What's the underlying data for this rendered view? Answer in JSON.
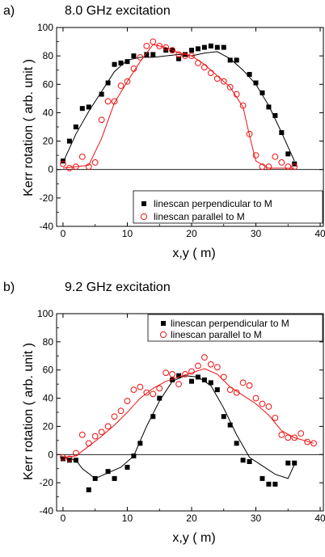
{
  "chart_data": [
    {
      "type": "scatter",
      "panel_label": "a)",
      "title": "8.0 GHz excitation",
      "xlabel": "x,y (  m)",
      "ylabel": "Kerr rotation ( arb. unit )",
      "xlim": [
        -1,
        40.5
      ],
      "ylim": [
        -40,
        100
      ],
      "xticks": [
        0,
        10,
        20,
        30,
        40
      ],
      "yticks": [
        -40,
        -20,
        0,
        20,
        40,
        60,
        80,
        100
      ],
      "zero_line": true,
      "legend_position": "bottom-right",
      "series": [
        {
          "name": "linescan perpendicular to M",
          "marker": "square-filled",
          "color": "#000000",
          "points": [
            [
              0,
              6
            ],
            [
              1,
              20
            ],
            [
              2,
              30
            ],
            [
              3,
              43
            ],
            [
              4,
              44
            ],
            [
              6,
              53
            ],
            [
              7,
              61
            ],
            [
              8,
              74
            ],
            [
              9,
              75
            ],
            [
              10,
              76
            ],
            [
              11,
              80
            ],
            [
              13,
              81
            ],
            [
              14,
              81
            ],
            [
              16,
              84
            ],
            [
              17,
              84
            ],
            [
              18,
              78
            ],
            [
              19,
              81
            ],
            [
              20,
              84
            ],
            [
              21,
              85
            ],
            [
              22,
              86
            ],
            [
              23,
              87
            ],
            [
              24,
              86
            ],
            [
              25,
              86
            ],
            [
              26,
              77
            ],
            [
              27,
              77
            ],
            [
              29,
              67
            ],
            [
              30,
              61
            ],
            [
              31,
              54
            ],
            [
              32,
              44
            ],
            [
              33,
              38
            ],
            [
              34,
              26
            ],
            [
              35,
              11
            ],
            [
              36,
              4
            ]
          ],
          "fit": [
            [
              0,
              5
            ],
            [
              2,
              25
            ],
            [
              4,
              41
            ],
            [
              6,
              55
            ],
            [
              8,
              69
            ],
            [
              10,
              77
            ],
            [
              12,
              79
            ],
            [
              14,
              79
            ],
            [
              16,
              80
            ],
            [
              18,
              81
            ],
            [
              20,
              80
            ],
            [
              22,
              82
            ],
            [
              24,
              83
            ],
            [
              26,
              78
            ],
            [
              28,
              70
            ],
            [
              30,
              60
            ],
            [
              32,
              45
            ],
            [
              34,
              26
            ],
            [
              36,
              6
            ]
          ]
        },
        {
          "name": "linescan parallel to M",
          "marker": "circle-open",
          "color": "#ee1111",
          "points": [
            [
              0,
              4
            ],
            [
              1,
              1
            ],
            [
              2,
              2
            ],
            [
              3,
              9
            ],
            [
              4,
              2
            ],
            [
              5,
              5
            ],
            [
              6,
              35
            ],
            [
              7,
              48
            ],
            [
              8,
              48
            ],
            [
              9,
              59
            ],
            [
              10,
              62
            ],
            [
              11,
              71
            ],
            [
              12,
              79
            ],
            [
              13,
              87
            ],
            [
              14,
              90
            ],
            [
              15,
              87
            ],
            [
              16,
              86
            ],
            [
              17,
              84
            ],
            [
              18,
              81
            ],
            [
              19,
              80
            ],
            [
              20,
              80
            ],
            [
              21,
              75
            ],
            [
              22,
              72
            ],
            [
              23,
              68
            ],
            [
              24,
              64
            ],
            [
              25,
              62
            ],
            [
              26,
              58
            ],
            [
              27,
              53
            ],
            [
              28,
              45
            ],
            [
              29,
              25
            ],
            [
              30,
              10
            ],
            [
              31,
              2
            ],
            [
              32,
              2
            ],
            [
              33,
              9
            ],
            [
              34,
              5
            ],
            [
              35,
              2
            ],
            [
              36,
              2
            ]
          ],
          "fit": [
            [
              0,
              1
            ],
            [
              2,
              2
            ],
            [
              4,
              3
            ],
            [
              6,
              22
            ],
            [
              8,
              47
            ],
            [
              10,
              62
            ],
            [
              12,
              76
            ],
            [
              14,
              88
            ],
            [
              16,
              86
            ],
            [
              18,
              82
            ],
            [
              20,
              80
            ],
            [
              22,
              74
            ],
            [
              24,
              66
            ],
            [
              26,
              58
            ],
            [
              28,
              44
            ],
            [
              29,
              24
            ],
            [
              30,
              6
            ],
            [
              32,
              1
            ],
            [
              34,
              1
            ],
            [
              36,
              1
            ]
          ]
        }
      ]
    },
    {
      "type": "scatter",
      "panel_label": "b)",
      "title": "9.2 GHz excitation",
      "xlabel": "x,y (  m)",
      "ylabel": "Kerr rotation ( arb. unit )",
      "xlim": [
        -1,
        40.5
      ],
      "ylim": [
        -40,
        100
      ],
      "xticks": [
        0,
        10,
        20,
        30,
        40
      ],
      "yticks": [
        -40,
        -20,
        0,
        20,
        40,
        60,
        80,
        100
      ],
      "zero_line": true,
      "legend_position": "top-right",
      "series": [
        {
          "name": "linescan perpendicular to M",
          "marker": "square-filled",
          "color": "#000000",
          "points": [
            [
              0,
              -3
            ],
            [
              1,
              -4
            ],
            [
              2,
              -4
            ],
            [
              4,
              -25
            ],
            [
              5,
              -17
            ],
            [
              7,
              -12
            ],
            [
              8,
              -17
            ],
            [
              10,
              -9
            ],
            [
              11,
              -1
            ],
            [
              12,
              8
            ],
            [
              14,
              27
            ],
            [
              15,
              40
            ],
            [
              17,
              53
            ],
            [
              18,
              56
            ],
            [
              20,
              52
            ],
            [
              21,
              55
            ],
            [
              22,
              53
            ],
            [
              23,
              51
            ],
            [
              24,
              46
            ],
            [
              25,
              27
            ],
            [
              26,
              21
            ],
            [
              27,
              8
            ],
            [
              28,
              -4
            ],
            [
              29,
              -5
            ],
            [
              31,
              -17
            ],
            [
              32,
              -21
            ],
            [
              33,
              -21
            ],
            [
              35,
              -6
            ],
            [
              36,
              -6
            ]
          ],
          "fit": [
            [
              0,
              -2
            ],
            [
              2,
              -4
            ],
            [
              3,
              -10
            ],
            [
              5,
              -17
            ],
            [
              7,
              -13
            ],
            [
              9,
              -9
            ],
            [
              11,
              -1
            ],
            [
              13,
              20
            ],
            [
              15,
              38
            ],
            [
              17,
              52
            ],
            [
              19,
              56
            ],
            [
              21,
              55
            ],
            [
              23,
              49
            ],
            [
              25,
              33
            ],
            [
              27,
              14
            ],
            [
              29,
              -2
            ],
            [
              31,
              -8
            ],
            [
              33,
              -14
            ],
            [
              35,
              -17
            ],
            [
              36,
              -7
            ]
          ]
        },
        {
          "name": "linescan parallel to M",
          "marker": "circle-open",
          "color": "#ee1111",
          "points": [
            [
              0,
              -2
            ],
            [
              1,
              -3
            ],
            [
              2,
              1
            ],
            [
              3,
              14
            ],
            [
              4,
              8
            ],
            [
              5,
              13
            ],
            [
              6,
              16
            ],
            [
              7,
              20
            ],
            [
              8,
              27
            ],
            [
              9,
              31
            ],
            [
              10,
              38
            ],
            [
              11,
              46
            ],
            [
              12,
              48
            ],
            [
              13,
              44
            ],
            [
              14,
              43
            ],
            [
              15,
              47
            ],
            [
              16,
              58
            ],
            [
              17,
              57
            ],
            [
              18,
              50
            ],
            [
              19,
              57
            ],
            [
              20,
              59
            ],
            [
              21,
              63
            ],
            [
              22,
              69
            ],
            [
              23,
              64
            ],
            [
              24,
              62
            ],
            [
              25,
              55
            ],
            [
              26,
              46
            ],
            [
              27,
              44
            ],
            [
              28,
              51
            ],
            [
              29,
              49
            ],
            [
              30,
              40
            ],
            [
              31,
              36
            ],
            [
              32,
              34
            ],
            [
              33,
              26
            ],
            [
              34,
              14
            ],
            [
              35,
              12
            ],
            [
              36,
              12
            ],
            [
              37,
              15
            ],
            [
              38,
              9
            ],
            [
              39,
              8
            ]
          ],
          "fit": [
            [
              0,
              -2
            ],
            [
              2,
              -1
            ],
            [
              4,
              6
            ],
            [
              6,
              13
            ],
            [
              8,
              21
            ],
            [
              10,
              30
            ],
            [
              12,
              40
            ],
            [
              14,
              47
            ],
            [
              16,
              52
            ],
            [
              18,
              55
            ],
            [
              20,
              58
            ],
            [
              22,
              61
            ],
            [
              24,
              57
            ],
            [
              26,
              48
            ],
            [
              28,
              42
            ],
            [
              30,
              36
            ],
            [
              32,
              28
            ],
            [
              34,
              17
            ],
            [
              36,
              12
            ],
            [
              39,
              8
            ]
          ]
        }
      ]
    }
  ]
}
